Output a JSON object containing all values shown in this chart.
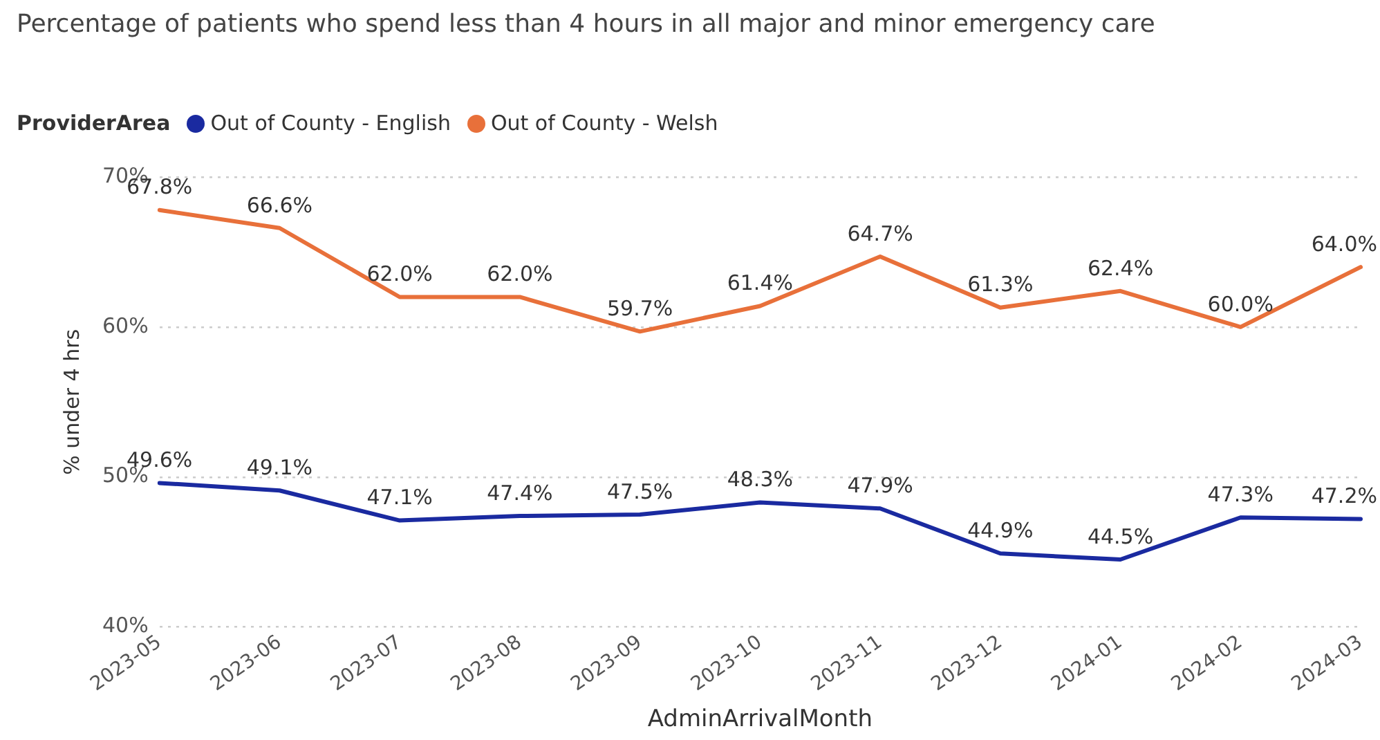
{
  "chart_data": {
    "type": "line",
    "title": "Percentage of patients who spend less than 4 hours in all major and minor emergency care",
    "xlabel": "AdminArrivalMonth",
    "ylabel": "% under 4 hrs",
    "legend_title": "ProviderArea",
    "legend": "top left",
    "grid": "y",
    "marker": "none",
    "line_style": "solid",
    "categories": [
      "2023-05",
      "2023-06",
      "2023-07",
      "2023-08",
      "2023-09",
      "2023-10",
      "2023-11",
      "2023-12",
      "2024-01",
      "2024-02",
      "2024-03"
    ],
    "ylim": [
      40,
      70
    ],
    "yticks": [
      {
        "value": 40,
        "label": "40%"
      },
      {
        "value": 50,
        "label": "50%"
      },
      {
        "value": 60,
        "label": "60%"
      },
      {
        "value": 70,
        "label": "70%"
      }
    ],
    "series": [
      {
        "name": "Out of County - English",
        "color": "#1a2aa0",
        "values": [
          49.6,
          49.1,
          47.1,
          47.4,
          47.5,
          48.3,
          47.9,
          44.9,
          44.5,
          47.3,
          47.2
        ],
        "value_labels": [
          "49.6%",
          "49.1%",
          "47.1%",
          "47.4%",
          "47.5%",
          "48.3%",
          "47.9%",
          "44.9%",
          "44.5%",
          "47.3%",
          "47.2%"
        ]
      },
      {
        "name": "Out of County - Welsh",
        "color": "#e8703a",
        "values": [
          67.8,
          66.6,
          62.0,
          62.0,
          59.7,
          61.4,
          64.7,
          61.3,
          62.4,
          60.0,
          64.0
        ],
        "value_labels": [
          "67.8%",
          "66.6%",
          "62.0%",
          "62.0%",
          "59.7%",
          "61.4%",
          "64.7%",
          "61.3%",
          "62.4%",
          "60.0%",
          "64.0%"
        ]
      }
    ]
  }
}
